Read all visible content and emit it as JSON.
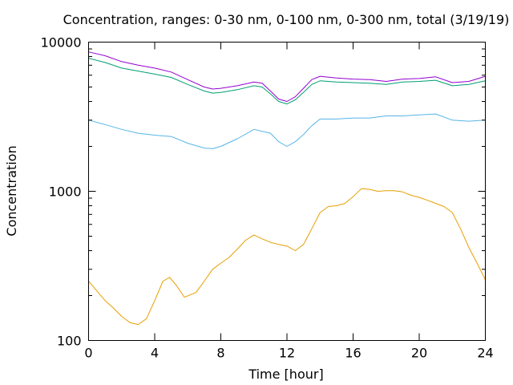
{
  "chart_data": {
    "type": "line",
    "title": "Concentration, ranges: 0-30 nm, 0-100 nm, 0-300 nm, total (3/19/19)",
    "xlabel": "Time [hour]",
    "ylabel": "Concentration",
    "xlim": [
      0,
      24
    ],
    "ylim": [
      100,
      10000
    ],
    "yscale": "log",
    "grid": false,
    "legend": "none",
    "x_ticks": [
      "0",
      "4",
      "8",
      "12",
      "16",
      "20",
      "24"
    ],
    "y_ticks": [
      "100",
      "1000",
      "10000"
    ],
    "series": [
      {
        "color": "#e69f00",
        "x": [
          0,
          0.5,
          1,
          1.5,
          2,
          2.5,
          3,
          3.5,
          4,
          4.5,
          4.9,
          5.3,
          5.8,
          6.5,
          7,
          7.5,
          8,
          8.5,
          9,
          9.5,
          10,
          10.5,
          11,
          11.5,
          12,
          12.5,
          13,
          13.5,
          14,
          14.5,
          15,
          15.5,
          16,
          16.5,
          17,
          17.5,
          18,
          18.5,
          19,
          19.5,
          20,
          20.5,
          21,
          21.5,
          22,
          22.5,
          23,
          23.5,
          24
        ],
        "values": [
          250,
          215,
          185,
          165,
          145,
          132,
          128,
          140,
          185,
          250,
          265,
          235,
          195,
          210,
          250,
          300,
          330,
          360,
          410,
          470,
          510,
          480,
          455,
          440,
          430,
          400,
          440,
          560,
          720,
          790,
          800,
          830,
          920,
          1040,
          1030,
          1000,
          1010,
          1010,
          990,
          940,
          910,
          870,
          830,
          790,
          720,
          560,
          420,
          330,
          255
        ]
      },
      {
        "color": "#56b4e9",
        "x": [
          0,
          1,
          2,
          3,
          4,
          5,
          6,
          7,
          7.5,
          8,
          9,
          10,
          11,
          11.5,
          12,
          12.5,
          13,
          13.5,
          14,
          15,
          16,
          17,
          18,
          19,
          20,
          21,
          22,
          23,
          24
        ],
        "values": [
          3000,
          2800,
          2600,
          2450,
          2380,
          2330,
          2100,
          1950,
          1930,
          2000,
          2250,
          2600,
          2450,
          2150,
          2000,
          2150,
          2400,
          2750,
          3050,
          3050,
          3100,
          3100,
          3200,
          3200,
          3250,
          3300,
          3000,
          2950,
          3000
        ]
      },
      {
        "color": "#009e73",
        "x": [
          0,
          1,
          2,
          3,
          4,
          5,
          6,
          7,
          7.5,
          8,
          9,
          10,
          10.5,
          11,
          11.5,
          12,
          12.5,
          13,
          13.5,
          14,
          15,
          16,
          17,
          18,
          19,
          20,
          21,
          22,
          23,
          24
        ],
        "values": [
          7800,
          7300,
          6700,
          6400,
          6100,
          5800,
          5200,
          4700,
          4550,
          4600,
          4800,
          5100,
          5000,
          4500,
          4000,
          3850,
          4100,
          4600,
          5200,
          5500,
          5400,
          5350,
          5300,
          5200,
          5400,
          5450,
          5550,
          5100,
          5200,
          5500
        ]
      },
      {
        "color": "#9400d3",
        "x": [
          0,
          1,
          2,
          3,
          4,
          5,
          6,
          7,
          7.5,
          8,
          9,
          10,
          10.5,
          11,
          11.5,
          12,
          12.5,
          13,
          13.5,
          14,
          15,
          16,
          17,
          18,
          19,
          20,
          21,
          22,
          23,
          24
        ],
        "values": [
          8600,
          8100,
          7400,
          7000,
          6700,
          6300,
          5600,
          5000,
          4850,
          4900,
          5100,
          5400,
          5300,
          4700,
          4150,
          4000,
          4300,
          4900,
          5600,
          5900,
          5750,
          5650,
          5600,
          5450,
          5650,
          5700,
          5850,
          5350,
          5450,
          5900
        ]
      }
    ]
  }
}
